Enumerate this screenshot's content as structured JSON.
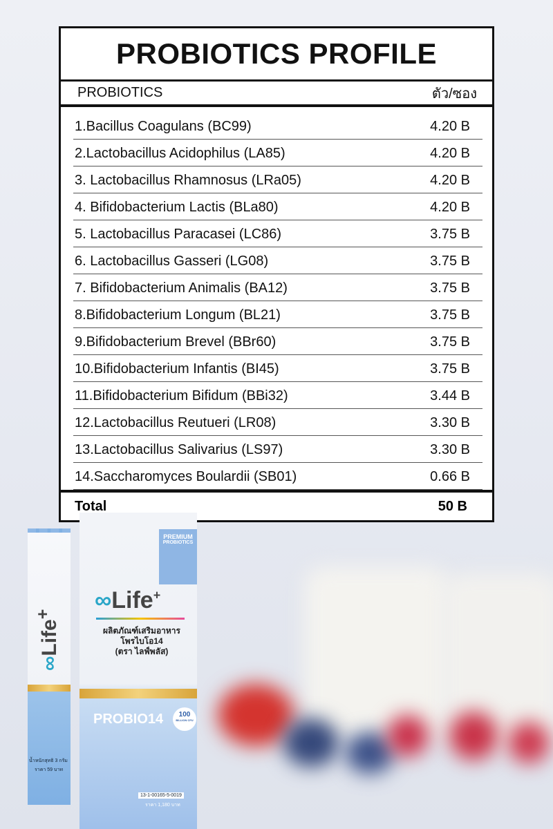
{
  "table": {
    "title": "PROBIOTICS PROFILE",
    "header": {
      "name": "PROBIOTICS",
      "amount": "ตัว/ซอง"
    },
    "rows": [
      {
        "name": "1.Bacillus Coagulans (BC99)",
        "amount": "4.20 B"
      },
      {
        "name": "2.Lactobacillus Acidophilus (LA85)",
        "amount": "4.20 B"
      },
      {
        "name": "3. Lactobacillus Rhamnosus (LRa05)",
        "amount": "4.20 B"
      },
      {
        "name": "4. Bifidobacterium Lactis (BLa80)",
        "amount": "4.20 B"
      },
      {
        "name": "5. Lactobacillus Paracasei (LC86)",
        "amount": "3.75 B"
      },
      {
        "name": "6. Lactobacillus Gasseri (LG08)",
        "amount": "3.75 B"
      },
      {
        "name": "7. Bifidobacterium Animalis (BA12)",
        "amount": "3.75 B"
      },
      {
        "name": "8.Bifidobacterium Longum (BL21)",
        "amount": "3.75 B"
      },
      {
        "name": "9.Bifidobacterium Brevel (BBr60)",
        "amount": "3.75 B"
      },
      {
        "name": "10.Bifidobacterium Infantis (BI45)",
        "amount": "3.75 B"
      },
      {
        "name": "11.Bifidobacterium Bifidum (BBi32)",
        "amount": "3.44 B"
      },
      {
        "name": "12.Lactobacillus Reutueri (LR08)",
        "amount": "3.30 B"
      },
      {
        "name": "13.Lactobacillus Salivarius (LS97)",
        "amount": "3.30 B"
      },
      {
        "name": "14.Saccharomyces  Boulardii (SB01)",
        "amount": "0.66 B"
      }
    ],
    "total": {
      "label": "Total",
      "amount": "50 B"
    }
  },
  "product": {
    "ribbon1": "PREMIUM",
    "ribbon2": "PROBIOTICS",
    "brand": "Life",
    "brand_plus": "+",
    "thai_line1": "ผลิตภัณฑ์เสริมอาหาร",
    "thai_line2": "โพรไบโอ14",
    "thai_line3": "(ตรา ไลฟ์พลัส)",
    "probio": "PROBIO14",
    "badge_value": "100",
    "badge_unit": "BILLION CFU",
    "barcode": "13-1-00165-5-0019",
    "box_price": "ราคา 1,180 บาท",
    "sachet_weight": "น้ำหนักสุทธิ 3 กรัม",
    "sachet_price": "ราคา 59 บาท"
  },
  "colors": {
    "accent_blue": "#8fb6e4",
    "gold": "#d8a43a"
  }
}
